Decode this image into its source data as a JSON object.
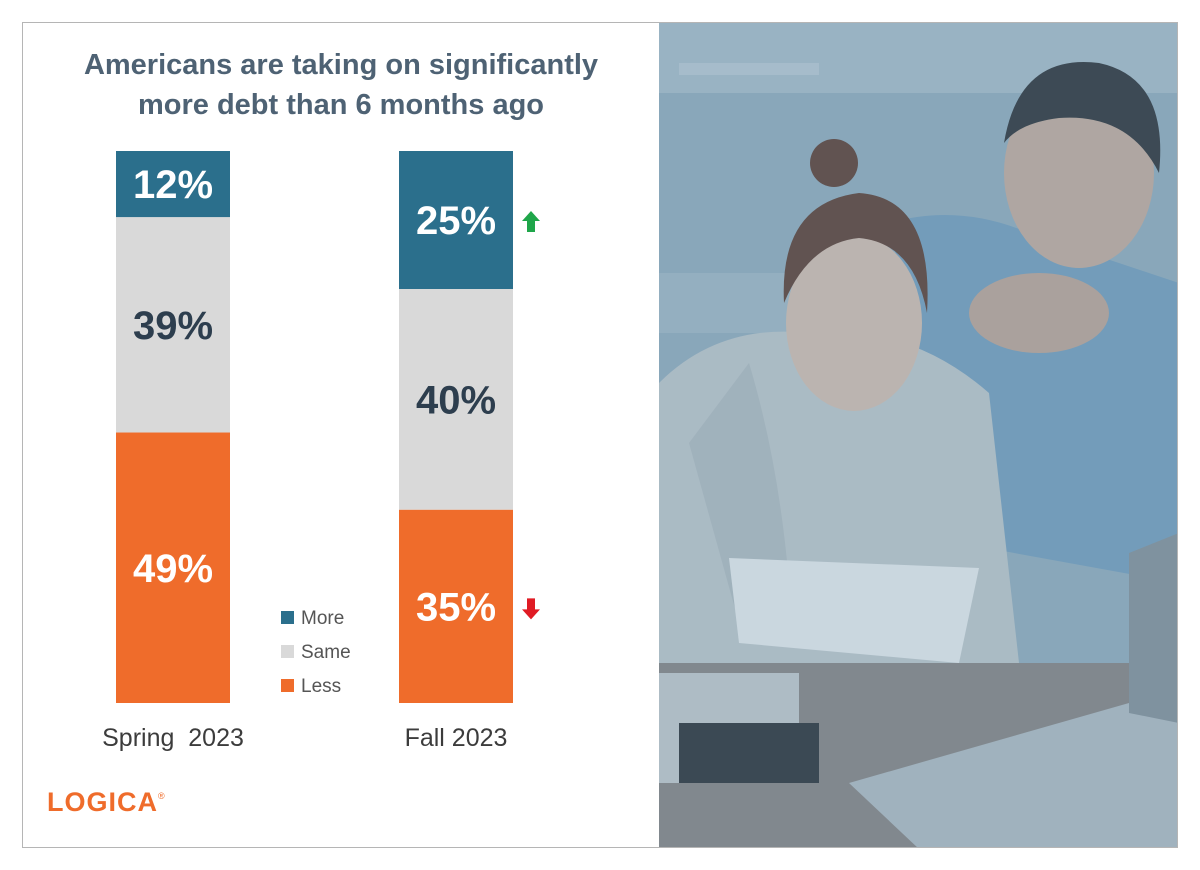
{
  "title_lines": [
    "Americans are taking on significantly",
    "more debt than 6 months ago"
  ],
  "logo_text": "LOGICA",
  "logo_mark": "®",
  "colors": {
    "more": "#2b6f8c",
    "same": "#d9d9d9",
    "less": "#ef6c2b",
    "up": "#1fa64a",
    "down": "#e01b24"
  },
  "chart_data": {
    "type": "bar",
    "stacked": true,
    "categories": [
      "Spring  2023",
      "Fall 2023"
    ],
    "series": [
      {
        "name": "More",
        "values": [
          12,
          25
        ],
        "labels": [
          "12%",
          "25%"
        ]
      },
      {
        "name": "Same",
        "values": [
          39,
          40
        ],
        "labels": [
          "39%",
          "40%"
        ]
      },
      {
        "name": "Less",
        "values": [
          49,
          35
        ],
        "labels": [
          "49%",
          "35%"
        ]
      }
    ],
    "ylim": [
      0,
      100
    ],
    "legend": [
      "More",
      "Same",
      "Less"
    ],
    "legend_position": "center-bottom",
    "annotations": [
      {
        "category": "Fall 2023",
        "series": "More",
        "arrow": "up"
      },
      {
        "category": "Fall 2023",
        "series": "Less",
        "arrow": "down"
      }
    ],
    "grid": false
  },
  "photo": {
    "icon": "photo-couple-reviewing-bills"
  }
}
